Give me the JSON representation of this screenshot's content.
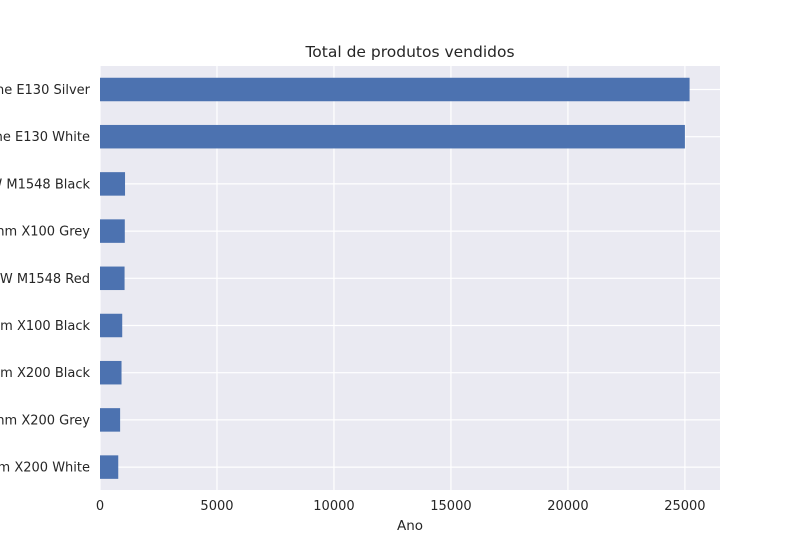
{
  "chart_data": {
    "type": "bar",
    "orientation": "horizontal",
    "title": "Total de produtos vendidos",
    "xlabel": "Ano",
    "ylabel": "",
    "xlim": [
      0,
      26500
    ],
    "xticks": [
      0,
      5000,
      10000,
      15000,
      20000,
      25000
    ],
    "grid": true,
    "colors": {
      "bar": "#4c72b0",
      "plot_background": "#eaeaf2",
      "grid": "#ffffff",
      "text": "#262626"
    },
    "categories": [
      "ne E130 Silver",
      "ne E130 White",
      "W M1548 Black",
      "mm X100 Grey",
      "W M1548 Red",
      "nm X100 Black",
      "nm X200 Black",
      "mm X200 Grey",
      "nm X200 White"
    ],
    "values": [
      25200,
      25000,
      1070,
      1060,
      1050,
      950,
      920,
      860,
      780
    ]
  }
}
